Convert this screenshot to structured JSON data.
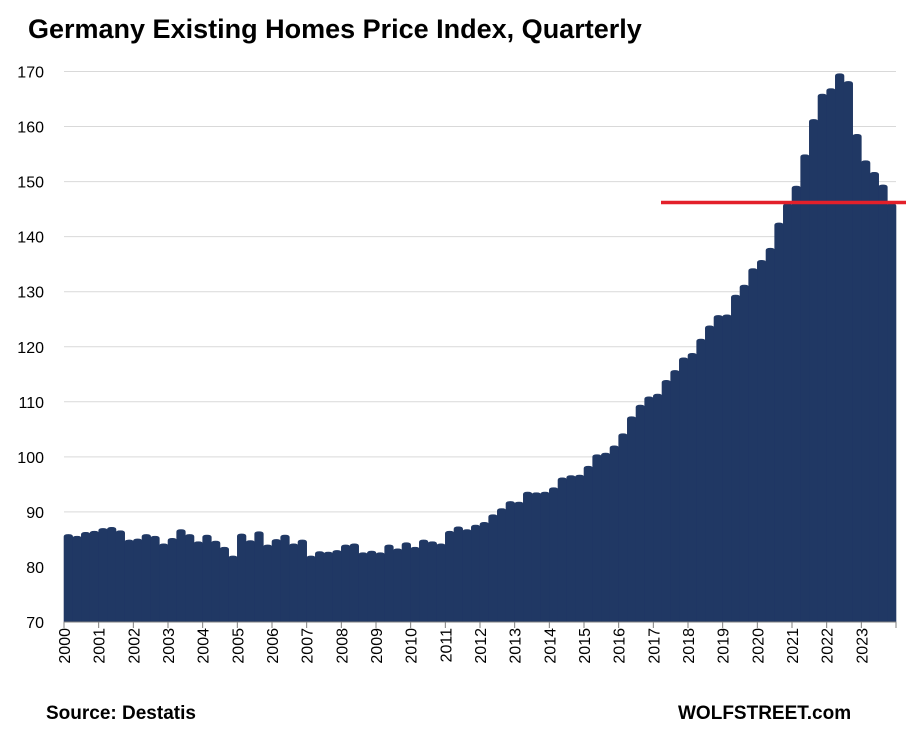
{
  "header": {
    "title": "Germany Existing Homes Price Index, Quarterly"
  },
  "footer": {
    "source": "Source: Destatis",
    "brand": "WOLFSTREET.com"
  },
  "colors": {
    "bars": "#203864",
    "reference_line": "#e3202a",
    "grid": "#d9d9d9"
  },
  "chart_data": {
    "type": "bar",
    "title": "Germany Existing Homes Price Index, Quarterly",
    "xlabel": "",
    "ylabel": "",
    "ylim": [
      70,
      170
    ],
    "yticks": [
      70,
      80,
      90,
      100,
      110,
      120,
      130,
      140,
      150,
      160,
      170
    ],
    "year_labels": [
      "2000",
      "2001",
      "2002",
      "2003",
      "2004",
      "2005",
      "2006",
      "2007",
      "2008",
      "2009",
      "2010",
      "2011",
      "2012",
      "2013",
      "2014",
      "2015",
      "2016",
      "2017",
      "2018",
      "2019",
      "2020",
      "2021",
      "2022",
      "2023"
    ],
    "grid": true,
    "legend": "none",
    "categories": [
      "2000 Q1",
      "2000 Q2",
      "2000 Q3",
      "2000 Q4",
      "2001 Q1",
      "2001 Q2",
      "2001 Q3",
      "2001 Q4",
      "2002 Q1",
      "2002 Q2",
      "2002 Q3",
      "2002 Q4",
      "2003 Q1",
      "2003 Q2",
      "2003 Q3",
      "2003 Q4",
      "2004 Q1",
      "2004 Q2",
      "2004 Q3",
      "2004 Q4",
      "2005 Q1",
      "2005 Q2",
      "2005 Q3",
      "2005 Q4",
      "2006 Q1",
      "2006 Q2",
      "2006 Q3",
      "2006 Q4",
      "2007 Q1",
      "2007 Q2",
      "2007 Q3",
      "2007 Q4",
      "2008 Q1",
      "2008 Q2",
      "2008 Q3",
      "2008 Q4",
      "2009 Q1",
      "2009 Q2",
      "2009 Q3",
      "2009 Q4",
      "2010 Q1",
      "2010 Q2",
      "2010 Q3",
      "2010 Q4",
      "2011 Q1",
      "2011 Q2",
      "2011 Q3",
      "2011 Q4",
      "2012 Q1",
      "2012 Q2",
      "2012 Q3",
      "2012 Q4",
      "2013 Q1",
      "2013 Q2",
      "2013 Q3",
      "2013 Q4",
      "2014 Q1",
      "2014 Q2",
      "2014 Q3",
      "2014 Q4",
      "2015 Q1",
      "2015 Q2",
      "2015 Q3",
      "2015 Q4",
      "2016 Q1",
      "2016 Q2",
      "2016 Q3",
      "2016 Q4",
      "2017 Q1",
      "2017 Q2",
      "2017 Q3",
      "2017 Q4",
      "2018 Q1",
      "2018 Q2",
      "2018 Q3",
      "2018 Q4",
      "2019 Q1",
      "2019 Q2",
      "2019 Q3",
      "2019 Q4",
      "2020 Q1",
      "2020 Q2",
      "2020 Q3",
      "2020 Q4",
      "2021 Q1",
      "2021 Q2",
      "2021 Q3",
      "2021 Q4",
      "2022 Q1",
      "2022 Q2",
      "2022 Q3",
      "2022 Q4",
      "2023 Q1",
      "2023 Q2",
      "2023 Q3",
      "2023 Q4"
    ],
    "values": [
      85.9,
      85.6,
      86.3,
      86.5,
      87.0,
      87.2,
      86.6,
      84.9,
      85.1,
      85.9,
      85.6,
      84.2,
      85.2,
      86.8,
      85.9,
      84.6,
      85.8,
      84.7,
      83.6,
      82.0,
      86.0,
      84.8,
      86.4,
      84.0,
      85.0,
      85.8,
      84.2,
      84.9,
      82.0,
      82.8,
      82.7,
      83.0,
      84.0,
      84.2,
      82.6,
      82.9,
      82.6,
      84.0,
      83.3,
      84.4,
      83.6,
      84.9,
      84.6,
      84.2,
      86.5,
      87.3,
      86.8,
      87.6,
      88.1,
      89.5,
      90.6,
      91.9,
      91.8,
      93.6,
      93.5,
      93.6,
      94.4,
      96.2,
      96.6,
      96.7,
      98.3,
      100.4,
      100.7,
      102.0,
      104.2,
      107.3,
      109.4,
      110.9,
      111.4,
      113.9,
      115.7,
      118.0,
      118.8,
      121.4,
      123.8,
      125.7,
      125.8,
      129.4,
      131.2,
      134.2,
      135.7,
      137.9,
      142.5,
      146.0,
      149.2,
      154.9,
      161.3,
      165.9,
      166.9,
      169.6,
      168.2,
      158.6,
      153.8,
      151.7,
      149.4,
      146.0
    ],
    "reference_line": {
      "value": 146.2,
      "from": "2017 Q2"
    }
  }
}
